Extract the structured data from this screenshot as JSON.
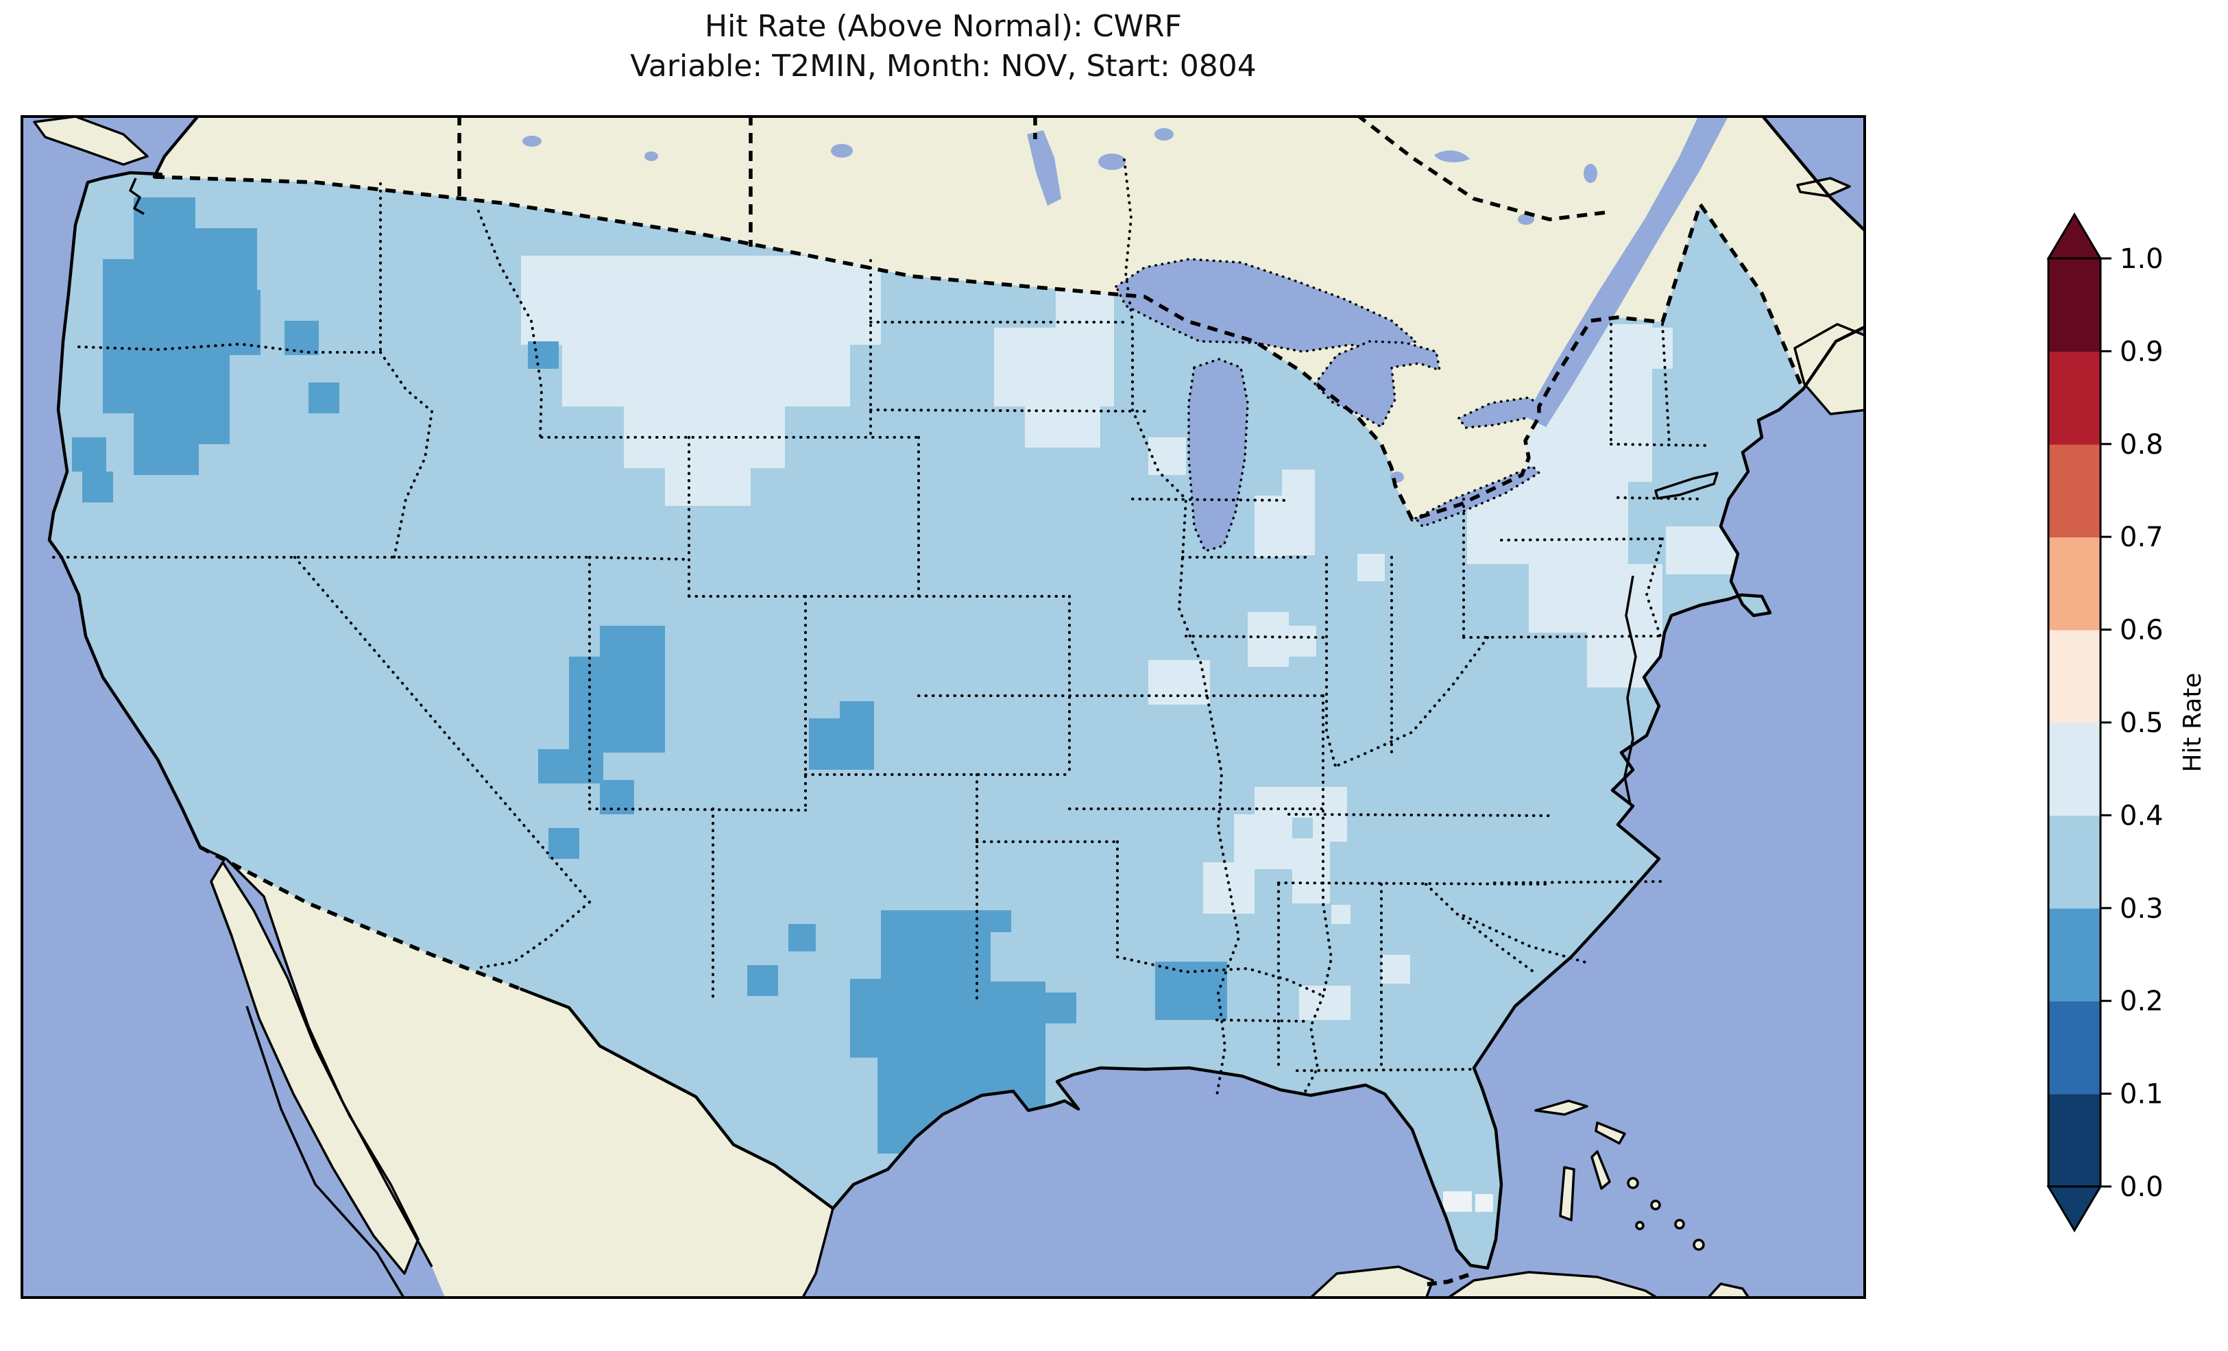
{
  "title": {
    "line1": "Hit Rate (Above Normal): CWRF",
    "line2": "Variable: T2MIN, Month: NOV, Start: 0804"
  },
  "colorbar": {
    "label": "Hit Rate",
    "ticks": [
      "0.0",
      "0.1",
      "0.2",
      "0.3",
      "0.4",
      "0.5",
      "0.6",
      "0.7",
      "0.8",
      "0.9",
      "1.0"
    ],
    "segment_colors_bottom_to_top": [
      "#103d6c",
      "#2c6bad",
      "#4f9aca",
      "#a7cee3",
      "#dcebf3",
      "#fbe9dc",
      "#f5af89",
      "#d4604c",
      "#b11f2f",
      "#640a20"
    ],
    "under_color": "#103d6c",
    "over_color": "#640a20",
    "extend": "both"
  },
  "colors": {
    "water": "#93aadb",
    "land": "#eeeeda",
    "coastline": "#000000",
    "class_0_2_to_0_3": "#56a0ce",
    "class_0_3_to_0_4": "#a7cee3",
    "class_0_4_to_0_5": "#dcebf3",
    "class_0_5_to_0_6": "#eef3f7"
  },
  "chart_data": {
    "type": "heatmap",
    "title": "Hit Rate (Above Normal): CWRF",
    "subtitle": "Variable: T2MIN, Month: NOV, Start: 0804",
    "geography": "Continental United States (gridded model verification map, Lambert-Conformal style view with Canada, Mexico, Atlantic and Pacific oceans visible)",
    "colorbar": {
      "label": "Hit Rate",
      "range": [
        0.0,
        1.0
      ],
      "boundaries": [
        0.0,
        0.1,
        0.2,
        0.3,
        0.4,
        0.5,
        0.6,
        0.7,
        0.8,
        0.9,
        1.0
      ],
      "colors_low_to_high": [
        "#103d6c",
        "#2c6bad",
        "#4f9aca",
        "#a7cee3",
        "#dcebf3",
        "#fbe9dc",
        "#f5af89",
        "#d4604c",
        "#b11f2f",
        "#640a20"
      ],
      "extend": "both",
      "position": "right"
    },
    "observations": {
      "dominant_bin": "0.3-0.4 (light blue) over most of the CONUS grid",
      "regions": [
        {
          "region": "Washington Cascades and western/central Oregon",
          "hit_rate_bin": "0.2-0.3"
        },
        {
          "region": "Central Utah and small Nevada/Idaho cells",
          "hit_rate_bin": "0.2-0.3"
        },
        {
          "region": "Central Colorado (small patch)",
          "hit_rate_bin": "0.2-0.3"
        },
        {
          "region": "Texas Panhandle through West and South Texas (large patch)",
          "hit_rate_bin": "0.2-0.3"
        },
        {
          "region": "Central Oklahoma (small patch)",
          "hit_rate_bin": "0.2-0.3"
        },
        {
          "region": "Montana / western Dakotas / NE Wyoming (large patch)",
          "hit_rate_bin": "0.4-0.5"
        },
        {
          "region": "Minnesota",
          "hit_rate_bin": "0.4-0.5"
        },
        {
          "region": "Lower Michigan, Wisconsin and Ohio/Indiana cells",
          "hit_rate_bin": "0.4-0.5"
        },
        {
          "region": "Upstate New York, New England (south of Maine), NJ / E. Pennsylvania",
          "hit_rate_bin": "0.4-0.5"
        },
        {
          "region": "Central Alabama / western Georgia patches",
          "hit_rate_bin": "0.4-0.5"
        },
        {
          "region": "Central Kansas and west Texas small patches",
          "hit_rate_bin": "0.4-0.5"
        },
        {
          "region": "Two cells in far south Florida",
          "hit_rate_bin": "0.5-0.6"
        },
        {
          "region": "Everything else in CONUS",
          "hit_rate_bin": "0.3-0.4"
        }
      ],
      "no_data_regions": "Canada, Mexico, Caribbean shown as plain land (beige); oceans and Great Lakes in light periwinkle blue"
    }
  }
}
